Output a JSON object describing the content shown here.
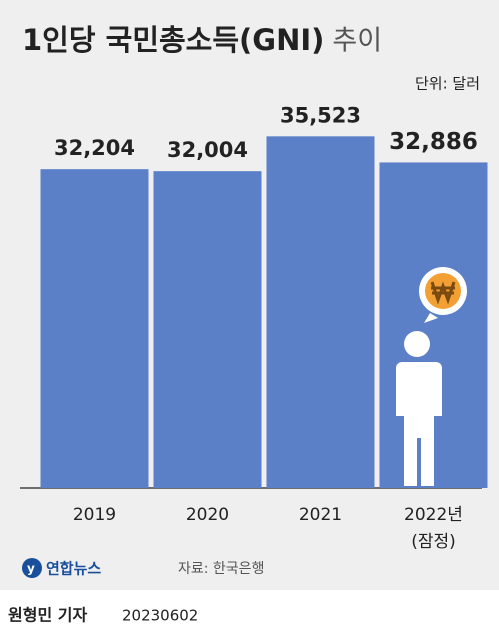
{
  "chart_data": {
    "type": "bar",
    "title": "1인당 국민총소득(GNI)",
    "subtitle": "추이",
    "unit": "단위: 달러",
    "categories": [
      "2019",
      "2020",
      "2021",
      "2022년"
    ],
    "category_note": "(잠정)",
    "values": [
      32204,
      32004,
      35523,
      32886
    ],
    "value_labels": [
      "32,204",
      "32,004",
      "35,523",
      "32,886"
    ],
    "color": "#5b80c8",
    "ylim": [
      0,
      40000
    ],
    "grid": false,
    "source": "자료: 한국은행",
    "agency": "연합뉴스",
    "reporter": "원형민 기자",
    "date": "20230602"
  }
}
